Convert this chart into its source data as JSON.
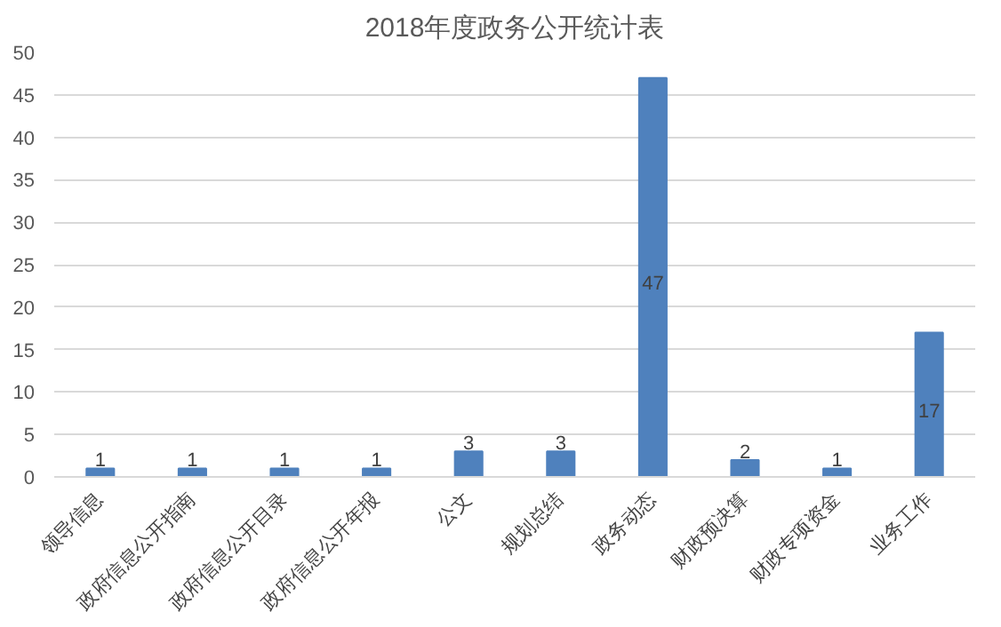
{
  "chart_data": {
    "type": "bar",
    "title": "2018年度政务公开统计表",
    "categories": [
      "领导信息",
      "政府信息公开指南",
      "政府信息公开目录",
      "政府信息公开年报",
      "公文",
      "规划总结",
      "政务动态",
      "财政预决算",
      "财政专项资金",
      "业务工作"
    ],
    "values": [
      1,
      1,
      1,
      1,
      3,
      3,
      47,
      2,
      1,
      17
    ],
    "color": "#4f81bd",
    "ylim": [
      0,
      50
    ],
    "yticks": [
      0,
      5,
      10,
      15,
      20,
      25,
      30,
      35,
      40,
      45,
      50
    ],
    "grid": "y",
    "data_labels": true
  }
}
